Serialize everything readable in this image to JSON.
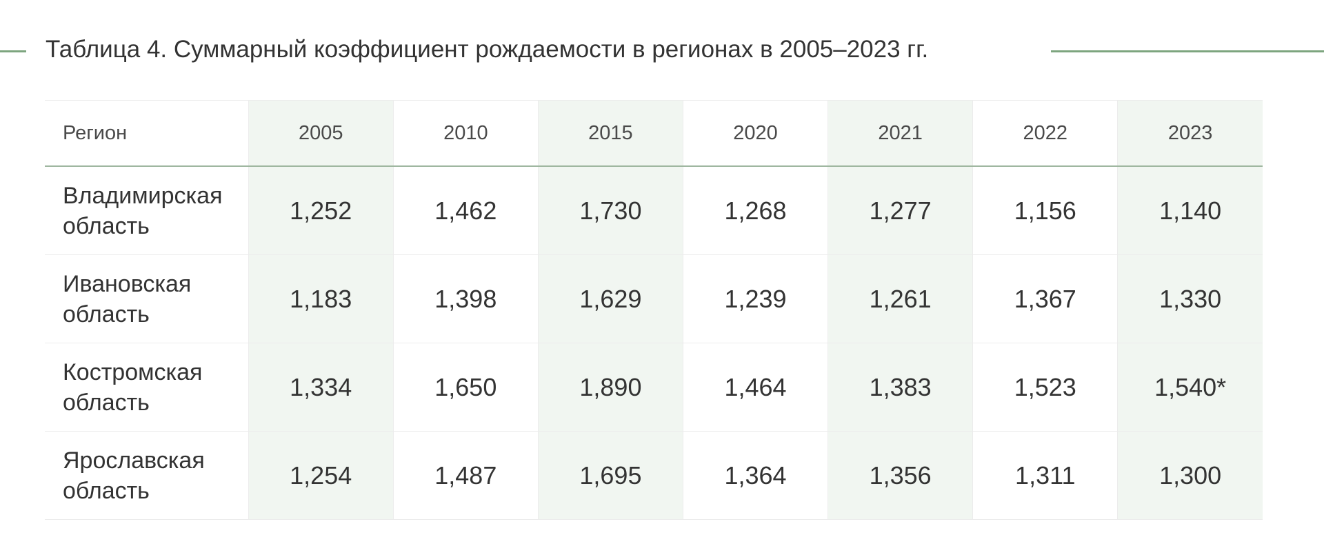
{
  "title": "Таблица 4. Суммарный коэффициент рождаемости в регионах в 2005–2023 гг.",
  "colors": {
    "accent": "#7da57f",
    "shaded_column": "#f1f6f1",
    "highlight_text": "#7aaa7c"
  },
  "table": {
    "header": {
      "region": "Регион",
      "years": [
        "2005",
        "2010",
        "2015",
        "2020",
        "2021",
        "2022",
        "2023"
      ]
    },
    "rows": [
      {
        "region": "Владимирская область",
        "values": [
          "1,252",
          "1,462",
          "1,730",
          "1,268",
          "1,277",
          "1,156",
          "1,140"
        ]
      },
      {
        "region": "Ивановская область",
        "values": [
          "1,183",
          "1,398",
          "1,629",
          "1,239",
          "1,261",
          "1,367",
          "1,330"
        ]
      },
      {
        "region": "Костромская область",
        "values": [
          "1,334",
          "1,650",
          "1,890",
          "1,464",
          "1,383",
          "1,523",
          "1,540*"
        ]
      },
      {
        "region": "Ярославская область",
        "values": [
          "1,254",
          "1,487",
          "1,695",
          "1,364",
          "1,356",
          "1,311",
          "1,300"
        ]
      }
    ]
  }
}
